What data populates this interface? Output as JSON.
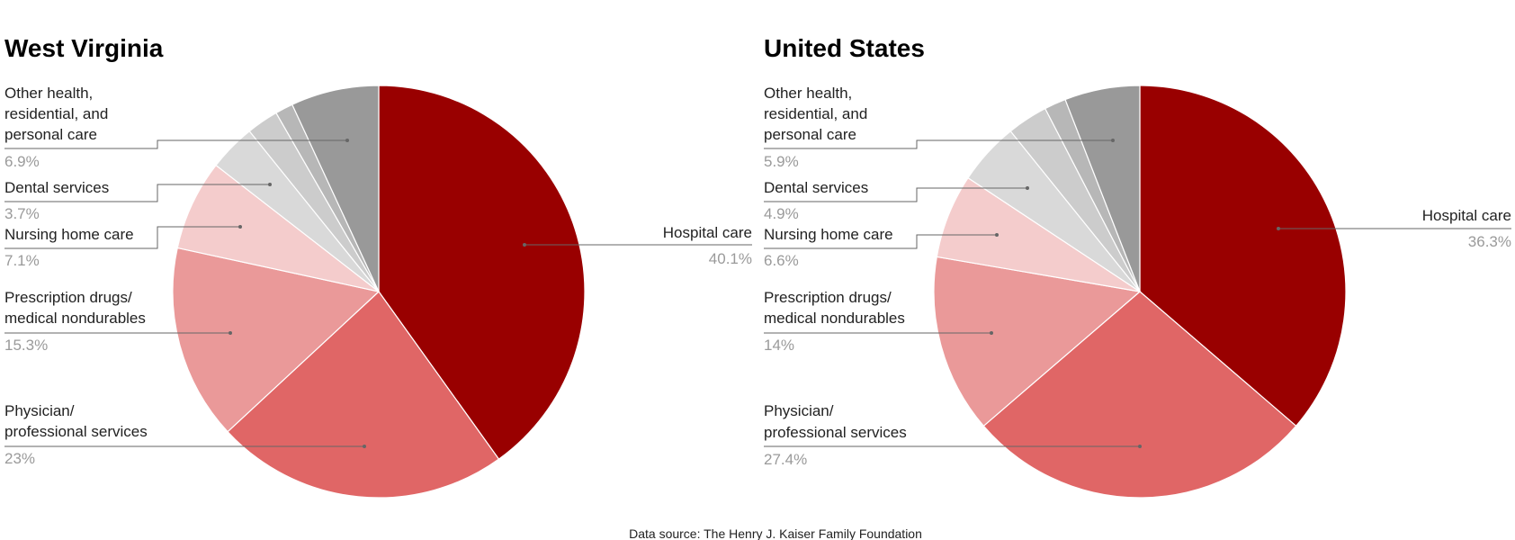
{
  "chart_data": [
    {
      "type": "pie",
      "title": "West Virginia",
      "slices": [
        {
          "label": "Hospital care",
          "value": 40.1,
          "display": "40.1%",
          "color": "#990000"
        },
        {
          "label": "Physician/ professional services",
          "value": 23,
          "display": "23%",
          "color": "#e06666"
        },
        {
          "label": "Prescription drugs/ medical nondurables",
          "value": 15.3,
          "display": "15.3%",
          "color": "#ea9999"
        },
        {
          "label": "Nursing home care",
          "value": 7.1,
          "display": "7.1%",
          "color": "#f4cccc"
        },
        {
          "label": "Dental services",
          "value": 3.7,
          "display": "3.7%",
          "color": "#d9d9d9"
        },
        {
          "value": 2.5,
          "color": "#cccccc"
        },
        {
          "value": 1.4,
          "color": "#b7b7b7"
        },
        {
          "label": "Other health, residential, and personal care",
          "value": 6.9,
          "display": "6.9%",
          "color": "#999999"
        }
      ]
    },
    {
      "type": "pie",
      "title": "United States",
      "slices": [
        {
          "label": "Hospital care",
          "value": 36.3,
          "display": "36.3%",
          "color": "#990000"
        },
        {
          "label": "Physician/ professional services",
          "value": 27.4,
          "display": "27.4%",
          "color": "#e06666"
        },
        {
          "label": "Prescription drugs/ medical nondurables",
          "value": 14,
          "display": "14%",
          "color": "#ea9999"
        },
        {
          "label": "Nursing home care",
          "value": 6.6,
          "display": "6.6%",
          "color": "#f4cccc"
        },
        {
          "label": "Dental services",
          "value": 4.9,
          "display": "4.9%",
          "color": "#d9d9d9"
        },
        {
          "value": 3.2,
          "color": "#cccccc"
        },
        {
          "value": 1.7,
          "color": "#b7b7b7"
        },
        {
          "label": "Other health, residential, and personal care",
          "value": 5.9,
          "display": "5.9%",
          "color": "#999999"
        }
      ]
    }
  ],
  "footer": {
    "source": "Data source: The Henry J. Kaiser Family Foundation"
  }
}
